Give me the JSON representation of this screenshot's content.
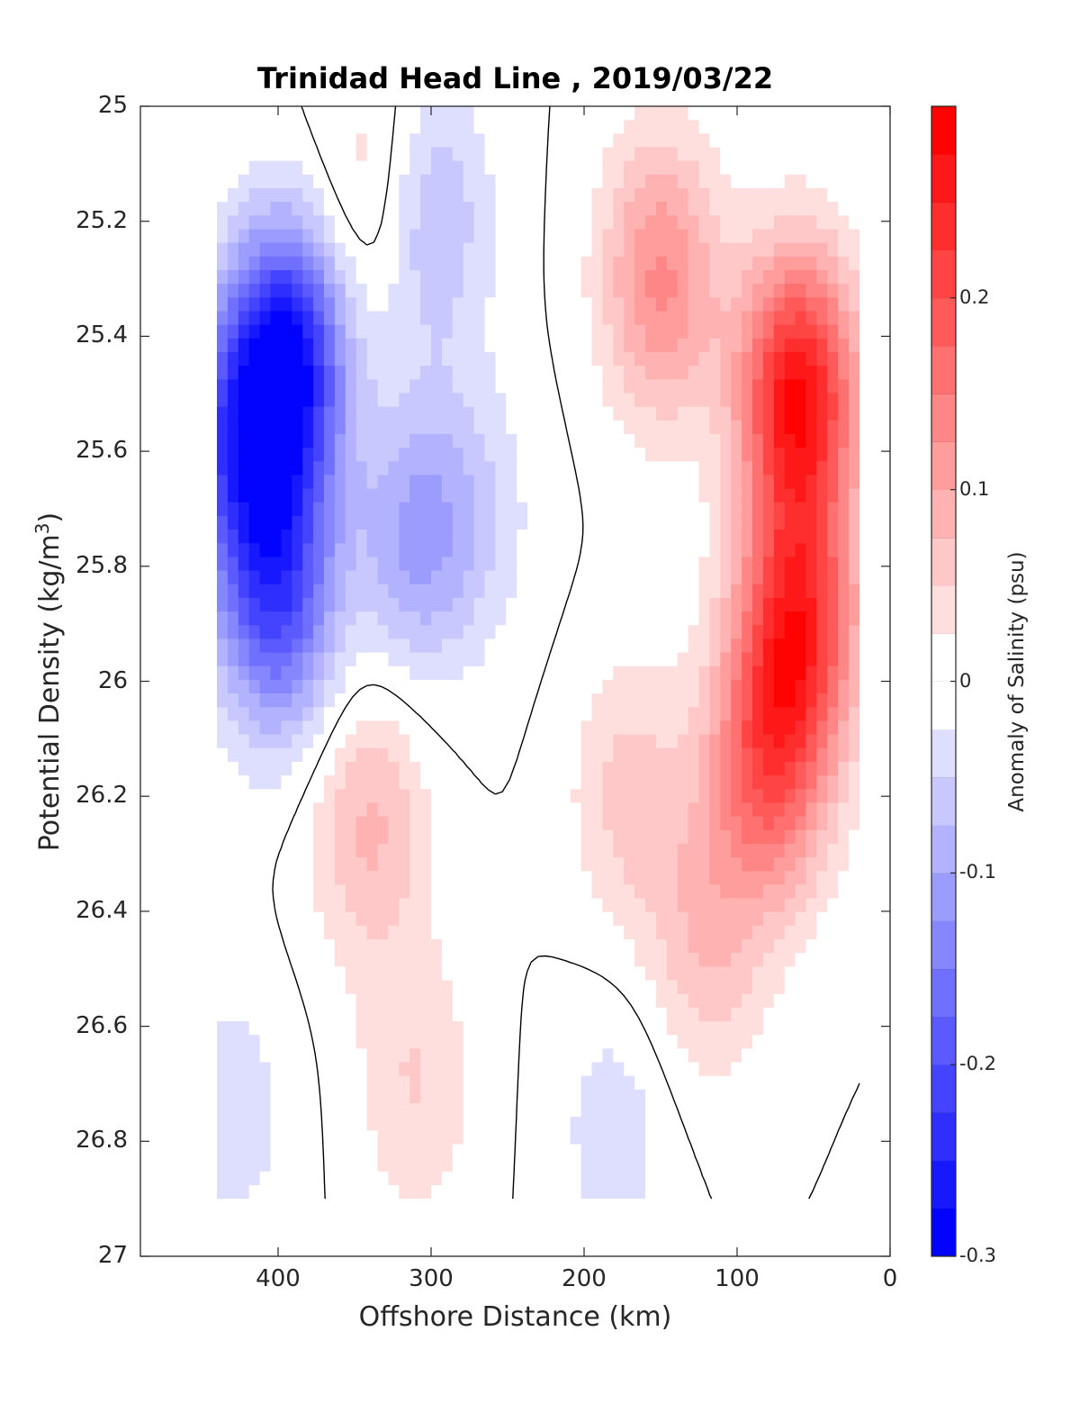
{
  "chart_data": {
    "type": "heatmap",
    "title": "Trinidad Head Line , 2019/03/22",
    "xlabel": "Offshore Distance (km)",
    "ylabel_main": "Potential Density (kg/m",
    "ylabel_sup": "3",
    "ylabel_close": ")",
    "colorbar_label": "Anomaly of Salinity (psu)",
    "x_reversed": true,
    "xlim": [
      490,
      0
    ],
    "ylim": [
      25,
      27
    ],
    "y_reversed": true,
    "x_ticks": [
      "400",
      "300",
      "200",
      "100",
      "0"
    ],
    "y_ticks": [
      "25",
      "25.2",
      "25.4",
      "25.6",
      "25.8",
      "26",
      "26.2",
      "26.4",
      "26.6",
      "26.8",
      "27"
    ],
    "colorbar_range": [
      -0.3,
      0.3
    ],
    "colorbar_ticks": [
      "0.2",
      "0.1",
      "0",
      "-0.1",
      "-0.2",
      "-0.3"
    ],
    "contour_interval": 0.025,
    "zero_contour_color": "#000000",
    "colormap_ends": {
      "low": "#0000ff",
      "mid": "#ffffff",
      "high": "#ff0000"
    },
    "data_x_extent_km": [
      440,
      20
    ],
    "data_y_extent": [
      25,
      26.9
    ],
    "features": [
      {
        "x_km": 395,
        "density": 25.45,
        "anomaly": -0.29
      },
      {
        "x_km": 400,
        "density": 25.85,
        "anomaly": -0.2
      },
      {
        "x_km": 430,
        "density": 25.6,
        "anomaly": -0.15
      },
      {
        "x_km": 340,
        "density": 25.15,
        "anomaly": 0.05
      },
      {
        "x_km": 300,
        "density": 25.2,
        "anomaly": -0.08
      },
      {
        "x_km": 310,
        "density": 25.75,
        "anomaly": -0.1
      },
      {
        "x_km": 270,
        "density": 25.7,
        "anomaly": -0.04
      },
      {
        "x_km": 340,
        "density": 26.25,
        "anomaly": 0.08
      },
      {
        "x_km": 310,
        "density": 26.7,
        "anomaly": 0.05
      },
      {
        "x_km": 150,
        "density": 25.3,
        "anomaly": 0.13
      },
      {
        "x_km": 60,
        "density": 25.5,
        "anomaly": 0.27
      },
      {
        "x_km": 60,
        "density": 25.9,
        "anomaly": 0.22
      },
      {
        "x_km": 80,
        "density": 26.15,
        "anomaly": 0.17
      },
      {
        "x_km": 170,
        "density": 26.2,
        "anomaly": 0.06
      },
      {
        "x_km": 120,
        "density": 26.45,
        "anomaly": 0.07
      },
      {
        "x_km": 430,
        "density": 26.75,
        "anomaly": -0.04
      },
      {
        "x_km": 180,
        "density": 26.78,
        "anomaly": -0.04
      },
      {
        "x_km": 255,
        "density": 26.4,
        "anomaly": 0.0
      },
      {
        "x_km": 175,
        "density": 25.65,
        "anomaly": 0.0
      },
      {
        "x_km": 470,
        "density": 26.25,
        "anomaly": 0.0
      }
    ]
  }
}
